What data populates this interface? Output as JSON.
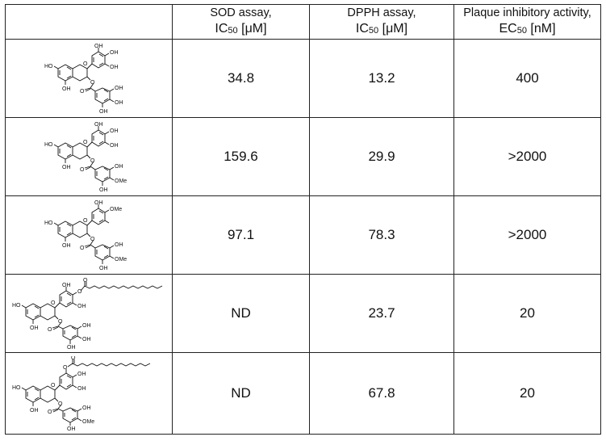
{
  "table": {
    "headers": [
      {
        "line1": "",
        "line2_main": "",
        "line2_sub": "",
        "line2_unit": ""
      },
      {
        "line1": "SOD assay,",
        "line2_main": "IC",
        "line2_sub": "50",
        "line2_unit": " [μM]"
      },
      {
        "line1": "DPPH assay,",
        "line2_main": "IC",
        "line2_sub": "50",
        "line2_unit": " [μM]"
      },
      {
        "line1": "Plaque inhibitory activity,",
        "line2_main": "EC",
        "line2_sub": "50",
        "line2_unit": " [nM]"
      }
    ],
    "rows": [
      {
        "sod": "34.8",
        "dpph": "13.2",
        "plaque": "400",
        "labels": {
          "oh_a": "HO",
          "oh_b": "OH",
          "oh_c": "OH",
          "oh_d": "OH",
          "oh_e": "OH",
          "oh_f": "OH",
          "oh_g": "OH",
          "oh_h": "OH",
          "o_ring": "O",
          "o_est": "O",
          "o_co": "O"
        }
      },
      {
        "sod": "159.6",
        "dpph": "29.9",
        "plaque": ">2000",
        "labels": {
          "oh_a": "HO",
          "oh_b": "OH",
          "oh_c": "OH",
          "oh_d": "OH",
          "oh_e": "OH",
          "oh_f": "OH",
          "ome": "OMe",
          "oh_h": "OH",
          "o_ring": "O",
          "o_est": "O",
          "o_co": "O"
        }
      },
      {
        "sod": "97.1",
        "dpph": "78.3",
        "plaque": ">2000",
        "labels": {
          "oh_a": "HO",
          "oh_b": "OH",
          "ome_b": "OMe",
          "oh_d": "OH",
          "oh_e": "OH",
          "ome": "OMe",
          "oh_h": "OH",
          "o_ring": "O",
          "o_est": "O",
          "o_co": "O"
        }
      },
      {
        "sod": "ND",
        "dpph": "23.7",
        "plaque": "20",
        "labels": {
          "oh_a": "HO",
          "oh_b": "OH",
          "oh_d": "OH",
          "oh_e": "OH",
          "oh_f": "OH",
          "oh_g": "OH",
          "oh_h": "OH",
          "oh_i": "OH",
          "o_ring": "O",
          "o_est": "O",
          "o_co": "O",
          "o_chain": "O",
          "o_chain_co": "O"
        }
      },
      {
        "sod": "ND",
        "dpph": "67.8",
        "plaque": "20",
        "labels": {
          "oh_a": "HO",
          "oh_b": "OH",
          "oh_d": "OH",
          "oh_e": "OH",
          "oh_f": "OH",
          "ome": "OMe",
          "oh_h": "OH",
          "o_ring": "O",
          "o_est": "O",
          "o_co": "O",
          "o_chain": "O",
          "o_chain_co": "O"
        }
      }
    ]
  },
  "colors": {
    "border": "#222222",
    "text": "#111111",
    "background": "#ffffff"
  }
}
